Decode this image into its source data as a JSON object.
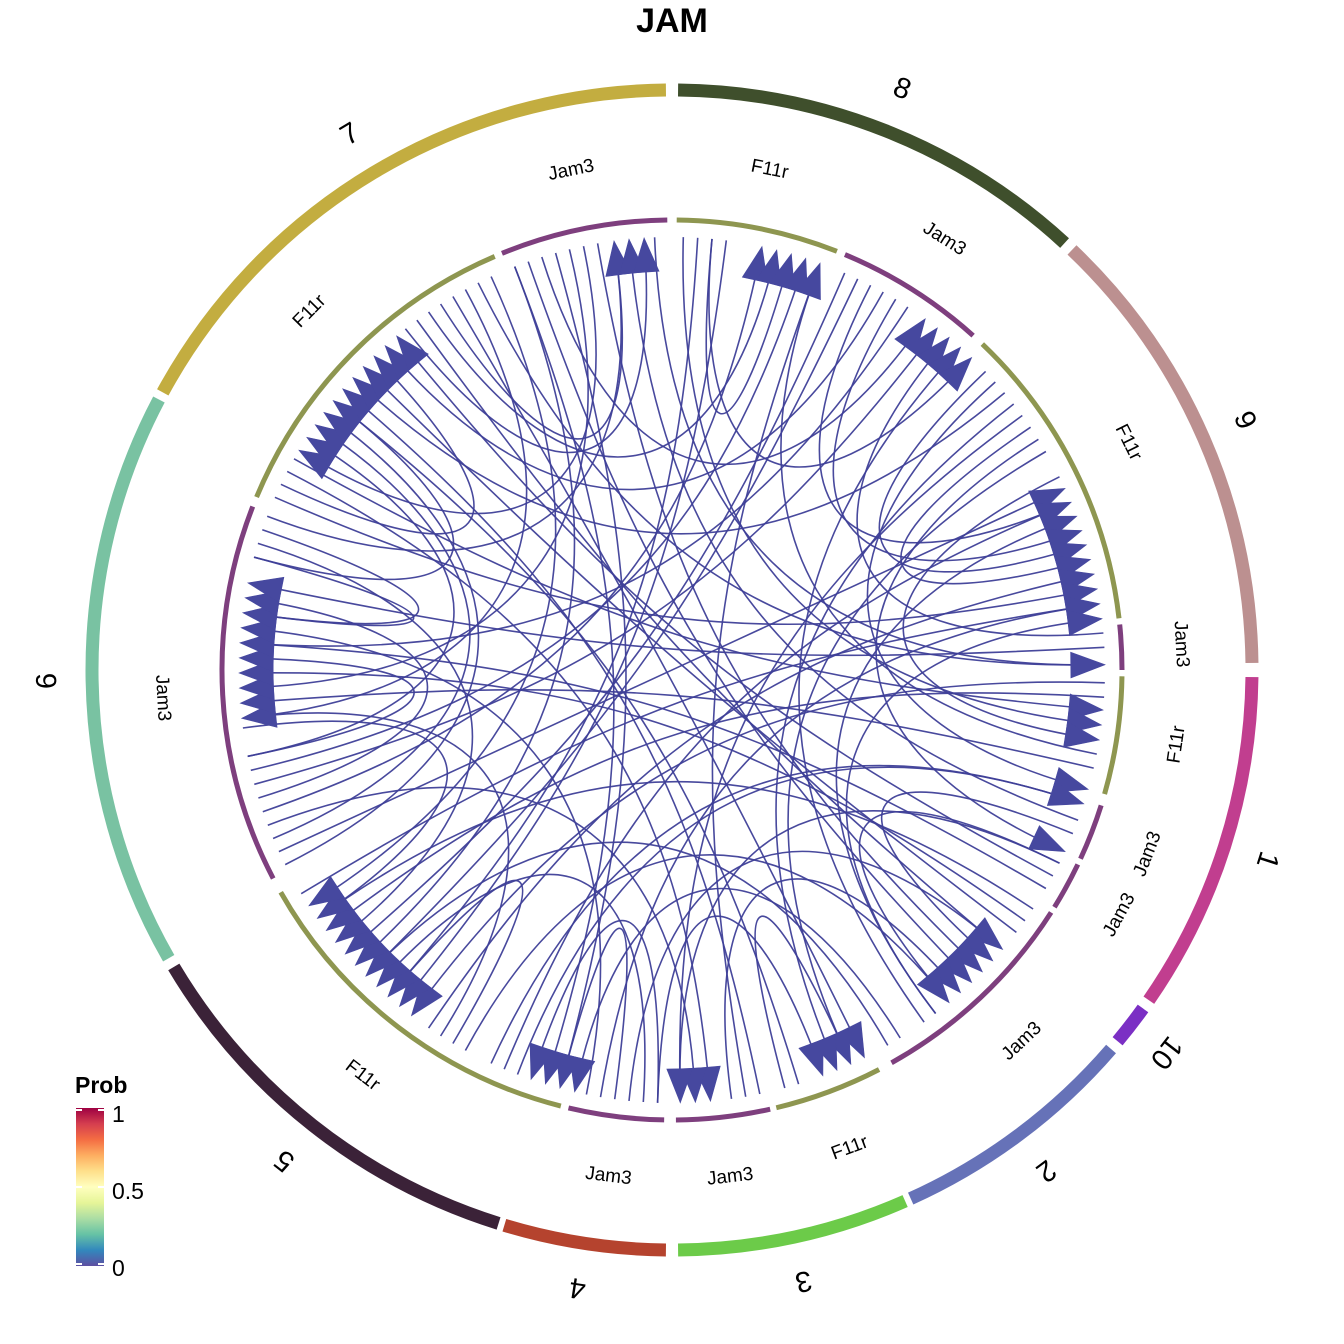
{
  "chart_data": {
    "type": "chord",
    "title": "JAM",
    "groups": [
      {
        "name": "1",
        "color": "#C13E8F"
      },
      {
        "name": "10",
        "color": "#7B2FC4"
      },
      {
        "name": "2",
        "color": "#6672B8"
      },
      {
        "name": "3",
        "color": "#6CCB49"
      },
      {
        "name": "4",
        "color": "#B5432E"
      },
      {
        "name": "5",
        "color": "#3B2238"
      },
      {
        "name": "6",
        "color": "#79C2A2"
      },
      {
        "name": "7",
        "color": "#C3AD40"
      },
      {
        "name": "8",
        "color": "#3F4F2C"
      },
      {
        "name": "9",
        "color": "#BC9090"
      }
    ],
    "sectors": [
      {
        "group": "1",
        "gene": "Jam3",
        "color": "#7E3F7E"
      },
      {
        "group": "1",
        "gene": "F11r",
        "color": "#8E9650"
      },
      {
        "group": "1",
        "gene": "Jam3",
        "color": "#7E3F7E"
      },
      {
        "group": "10",
        "gene": "Jam3",
        "color": "#7E3F7E"
      },
      {
        "group": "2",
        "gene": "Jam3",
        "color": "#7E3F7E"
      },
      {
        "group": "3",
        "gene": "F11r",
        "color": "#8E9650"
      },
      {
        "group": "3",
        "gene": "Jam3",
        "color": "#7E3F7E"
      },
      {
        "group": "4",
        "gene": "Jam3",
        "color": "#7E3F7E"
      },
      {
        "group": "5",
        "gene": "F11r",
        "color": "#8E9650"
      },
      {
        "group": "6",
        "gene": "Jam3",
        "color": "#7E3F7E"
      },
      {
        "group": "7",
        "gene": "F11r",
        "color": "#8E9650"
      },
      {
        "group": "7",
        "gene": "Jam3",
        "color": "#7E3F7E"
      },
      {
        "group": "8",
        "gene": "F11r",
        "color": "#8E9650"
      },
      {
        "group": "8",
        "gene": "Jam3",
        "color": "#7E3F7E"
      },
      {
        "group": "9",
        "gene": "F11r",
        "color": "#8E9650"
      }
    ],
    "link_color": "#3E3F98",
    "legend": {
      "title": "Prob",
      "ticks": [
        "1",
        "0.5",
        "0"
      ],
      "range": [
        0,
        1
      ],
      "colors": [
        "#5E4FA2",
        "#3288BD",
        "#66C2A5",
        "#ABDDA4",
        "#E6F598",
        "#FFFFBF",
        "#FEE08B",
        "#FDAE61",
        "#F46D43",
        "#D53E4F",
        "#9E0142"
      ],
      "placement": "bottom-left"
    }
  }
}
